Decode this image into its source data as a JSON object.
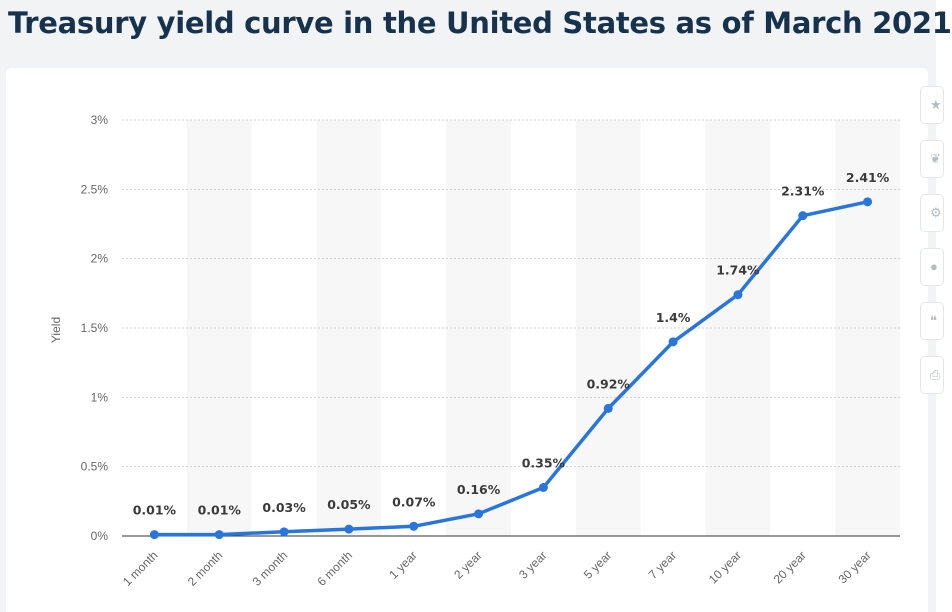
{
  "title": "Treasury yield curve in the United States as of March 2021",
  "chart_data": {
    "type": "line",
    "title": "Treasury yield curve in the United States as of March 2021",
    "xlabel": "",
    "ylabel": "Yield",
    "categories": [
      "1 month",
      "2 month",
      "3 month",
      "6 month",
      "1 year",
      "2 year",
      "3 year",
      "5 year",
      "7 year",
      "10 year",
      "20 year",
      "30 year"
    ],
    "series": [
      {
        "values": [
          0.01,
          0.01,
          0.03,
          0.05,
          0.07,
          0.16,
          0.35,
          0.92,
          1.4,
          1.74,
          2.31,
          2.41
        ],
        "labels": [
          "0.01%",
          "0.01%",
          "0.03%",
          "0.05%",
          "0.07%",
          "0.16%",
          "0.35%",
          "0.92%",
          "1.4%",
          "1.74%",
          "2.31%",
          "2.41%"
        ],
        "color": "#2876dd"
      }
    ],
    "ylim": [
      0,
      3
    ],
    "yticks": [
      0,
      0.5,
      1,
      1.5,
      2,
      2.5,
      3
    ],
    "ytick_labels": [
      "0%",
      "0.5%",
      "1%",
      "1.5%",
      "2%",
      "2.5%",
      "3%"
    ],
    "grid": true,
    "legend": "none",
    "colors": {
      "line": "#2876dd",
      "band": "#f7f7f7",
      "grid": "#cfcfcf"
    }
  },
  "toolbar": {
    "icons": [
      "star-icon",
      "bell-icon",
      "settings-icon",
      "share-icon",
      "quote-icon",
      "print-icon"
    ]
  }
}
